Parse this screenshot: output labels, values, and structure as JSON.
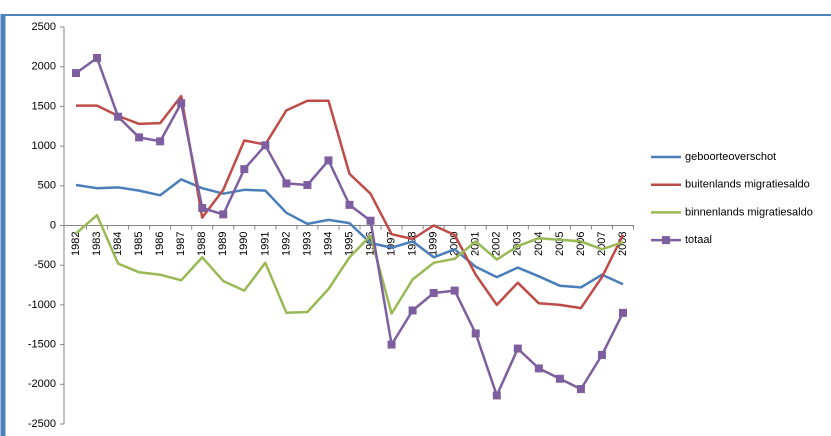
{
  "chart_data": {
    "type": "line",
    "categories": [
      "1982",
      "1983",
      "1984",
      "1985",
      "1986",
      "1987",
      "1988",
      "1989",
      "1990",
      "1991",
      "1992",
      "1993",
      "1994",
      "1995",
      "1996",
      "1997",
      "1998",
      "1999",
      "2000",
      "2001",
      "2002",
      "2003",
      "2004",
      "2005",
      "2006",
      "2007",
      "2008"
    ],
    "series": [
      {
        "name": "geboorteoverschot",
        "color": "#4a7ebb",
        "values": [
          510,
          470,
          480,
          440,
          380,
          580,
          470,
          400,
          450,
          440,
          160,
          20,
          70,
          30,
          -220,
          -280,
          -200,
          -400,
          -300,
          -520,
          -650,
          -530,
          -640,
          -760,
          -780,
          -620,
          -740
        ]
      },
      {
        "name": "buitenlands migratiesaldo",
        "color": "#be4b48",
        "values": [
          1510,
          1510,
          1380,
          1280,
          1290,
          1630,
          100,
          450,
          1070,
          1020,
          1450,
          1570,
          1570,
          650,
          400,
          -110,
          -170,
          0,
          -120,
          -620,
          -1000,
          -720,
          -980,
          -1000,
          -1040,
          -650,
          -120
        ]
      },
      {
        "name": "binnenlands migratiesaldo",
        "color": "#98b954",
        "values": [
          -100,
          130,
          -480,
          -590,
          -620,
          -690,
          -400,
          -700,
          -820,
          -470,
          -1100,
          -1090,
          -800,
          -400,
          -130,
          -1110,
          -680,
          -470,
          -420,
          -200,
          -430,
          -260,
          -160,
          -180,
          -200,
          -300,
          -210
        ]
      },
      {
        "name": "totaal",
        "color": "#7d5fa0",
        "marker": "square",
        "values": [
          1920,
          2110,
          1370,
          1110,
          1060,
          1540,
          220,
          140,
          710,
          1010,
          530,
          510,
          820,
          260,
          60,
          -1500,
          -1070,
          -850,
          -820,
          -1360,
          -2140,
          -1550,
          -1800,
          -1930,
          -2060,
          -1630,
          -1100
        ]
      }
    ],
    "ylim": [
      -2500,
      2500
    ],
    "yticks": [
      -2500,
      -2000,
      -1500,
      -1000,
      -500,
      0,
      500,
      1000,
      1500,
      2000,
      2500
    ],
    "legend": "right"
  }
}
